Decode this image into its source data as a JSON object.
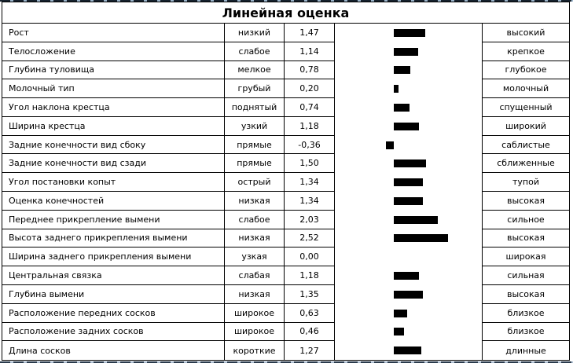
{
  "title": "Линейная оценка",
  "rows": [
    {
      "trait": "Рост",
      "low": "низкий",
      "value": "1,47",
      "value_num": 1.47,
      "high": "высокий"
    },
    {
      "trait": "Телосложение",
      "low": "слабое",
      "value": "1,14",
      "value_num": 1.14,
      "high": "крепкое"
    },
    {
      "trait": "Глубина туловища",
      "low": "мелкое",
      "value": "0,78",
      "value_num": 0.78,
      "high": "глубокое"
    },
    {
      "trait": "Молочный тип",
      "low": "грубый",
      "value": "0,20",
      "value_num": 0.2,
      "high": "молочный"
    },
    {
      "trait": "Угол наклона крестца",
      "low": "поднятый",
      "value": "0,74",
      "value_num": 0.74,
      "high": "спущенный"
    },
    {
      "trait": "Ширина крестца",
      "low": "узкий",
      "value": "1,18",
      "value_num": 1.18,
      "high": "широкий"
    },
    {
      "trait": "Задние конечности вид сбоку",
      "low": "прямые",
      "value": "-0,36",
      "value_num": -0.36,
      "high": "саблистые"
    },
    {
      "trait": "Задние конечности вид сзади",
      "low": "прямые",
      "value": "1,50",
      "value_num": 1.5,
      "high": "сближенные"
    },
    {
      "trait": "Угол постановки копыт",
      "low": "острый",
      "value": "1,34",
      "value_num": 1.34,
      "high": "тупой"
    },
    {
      "trait": "Оценка конечностей",
      "low": "низкая",
      "value": "1,34",
      "value_num": 1.34,
      "high": "высокая"
    },
    {
      "trait": "Переднее прикрепление вымени",
      "low": "слабое",
      "value": "2,03",
      "value_num": 2.03,
      "high": "сильное"
    },
    {
      "trait": "Высота заднего прикрепления вымени",
      "low": "низкая",
      "value": "2,52",
      "value_num": 2.52,
      "high": "высокая"
    },
    {
      "trait": "Ширина заднего прикрепления вымени",
      "low": "узкая",
      "value": "0,00",
      "value_num": 0.0,
      "high": "широкая"
    },
    {
      "trait": "Центральная связка",
      "low": "слабая",
      "value": "1,18",
      "value_num": 1.18,
      "high": "сильная"
    },
    {
      "trait": "Глубина вымени",
      "low": "низкая",
      "value": "1,35",
      "value_num": 1.35,
      "high": "высокая"
    },
    {
      "trait": "Расположение передних сосков",
      "low": "широкое",
      "value": "0,63",
      "value_num": 0.63,
      "high": "близкое"
    },
    {
      "trait": "Расположение задних сосков",
      "low": "широкое",
      "value": "0,46",
      "value_num": 0.46,
      "high": "близкое"
    },
    {
      "trait": "Длина сосков",
      "low": "короткие",
      "value": "1,27",
      "value_num": 1.27,
      "high": "длинные"
    }
  ],
  "chart_data": {
    "type": "bar",
    "orientation": "horizontal",
    "title": "Линейная оценка",
    "categories": [
      "Рост",
      "Телосложение",
      "Глубина туловища",
      "Молочный тип",
      "Угол наклона крестца",
      "Ширина крестца",
      "Задние конечности вид сбоку",
      "Задние конечности вид сзади",
      "Угол постановки копыт",
      "Оценка конечностей",
      "Переднее прикрепление вымени",
      "Высота заднего прикрепления вымени",
      "Ширина заднего прикрепления вымени",
      "Центральная связка",
      "Глубина вымени",
      "Расположение передних сосков",
      "Расположение задних сосков",
      "Длина сосков"
    ],
    "values": [
      1.47,
      1.14,
      0.78,
      0.2,
      0.74,
      1.18,
      -0.36,
      1.5,
      1.34,
      1.34,
      2.03,
      2.52,
      0.0,
      1.18,
      1.35,
      0.63,
      0.46,
      1.27
    ],
    "low_labels": [
      "низкий",
      "слабое",
      "мелкое",
      "грубый",
      "поднятый",
      "узкий",
      "прямые",
      "прямые",
      "острый",
      "низкая",
      "слабое",
      "низкая",
      "узкая",
      "слабая",
      "низкая",
      "широкое",
      "широкое",
      "короткие"
    ],
    "high_labels": [
      "высокий",
      "крепкое",
      "глубокое",
      "молочный",
      "спущенный",
      "широкий",
      "саблистые",
      "сближенные",
      "тупой",
      "высокая",
      "сильное",
      "высокая",
      "широкая",
      "сильная",
      "высокая",
      "близкое",
      "близкое",
      "длинные"
    ],
    "xlim": [
      -2.7,
      4.1
    ],
    "grid": false,
    "legend": false,
    "axis_visible": false,
    "bar_color": "#000000"
  },
  "colors": {
    "bar": "#000000",
    "border": "#000000",
    "background": "#ffffff",
    "pagebreak_dash": "#9db6cc"
  }
}
